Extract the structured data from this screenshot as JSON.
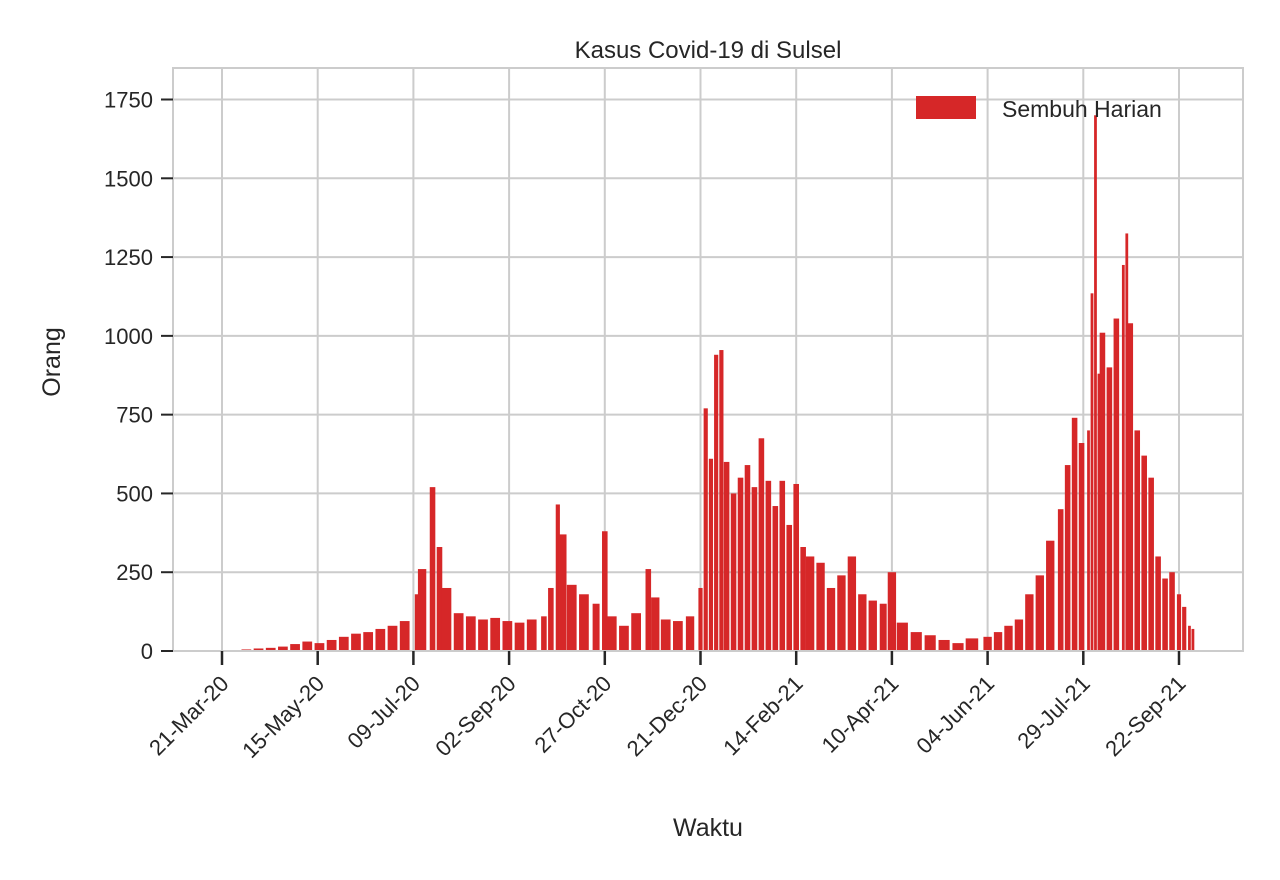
{
  "chart_data": {
    "type": "bar",
    "title": "Kasus Covid-19 di Sulsel",
    "xlabel": "Waktu",
    "ylabel": "Orang",
    "ylim": [
      0,
      1850
    ],
    "yticks": [
      0,
      250,
      500,
      750,
      1000,
      1250,
      1500,
      1750
    ],
    "xticks": [
      "21-Mar-20",
      "15-May-20",
      "09-Jul-20",
      "02-Sep-20",
      "27-Oct-20",
      "21-Dec-20",
      "14-Feb-21",
      "10-Apr-21",
      "04-Jun-21",
      "29-Jul-21",
      "22-Sep-21"
    ],
    "grid": true,
    "legend_position": "top-right",
    "color": "#d62728",
    "series": [
      {
        "name": "Sembuh Harian",
        "points": [
          [
            "2020-03-21",
            0
          ],
          [
            "2020-03-28",
            3
          ],
          [
            "2020-04-04",
            5
          ],
          [
            "2020-04-11",
            8
          ],
          [
            "2020-04-18",
            10
          ],
          [
            "2020-04-25",
            14
          ],
          [
            "2020-05-02",
            22
          ],
          [
            "2020-05-09",
            30
          ],
          [
            "2020-05-16",
            25
          ],
          [
            "2020-05-23",
            35
          ],
          [
            "2020-05-30",
            45
          ],
          [
            "2020-06-06",
            55
          ],
          [
            "2020-06-13",
            60
          ],
          [
            "2020-06-20",
            70
          ],
          [
            "2020-06-27",
            80
          ],
          [
            "2020-07-04",
            95
          ],
          [
            "2020-07-11",
            180
          ],
          [
            "2020-07-14",
            260
          ],
          [
            "2020-07-20",
            520
          ],
          [
            "2020-07-24",
            330
          ],
          [
            "2020-07-28",
            200
          ],
          [
            "2020-08-04",
            120
          ],
          [
            "2020-08-11",
            110
          ],
          [
            "2020-08-18",
            100
          ],
          [
            "2020-08-25",
            105
          ],
          [
            "2020-09-01",
            95
          ],
          [
            "2020-09-08",
            90
          ],
          [
            "2020-09-15",
            100
          ],
          [
            "2020-09-22",
            110
          ],
          [
            "2020-09-26",
            200
          ],
          [
            "2020-09-30",
            465
          ],
          [
            "2020-10-03",
            370
          ],
          [
            "2020-10-08",
            210
          ],
          [
            "2020-10-15",
            180
          ],
          [
            "2020-10-22",
            150
          ],
          [
            "2020-10-27",
            380
          ],
          [
            "2020-10-31",
            110
          ],
          [
            "2020-11-07",
            80
          ],
          [
            "2020-11-14",
            120
          ],
          [
            "2020-11-21",
            260
          ],
          [
            "2020-11-25",
            170
          ],
          [
            "2020-12-01",
            100
          ],
          [
            "2020-12-08",
            95
          ],
          [
            "2020-12-15",
            110
          ],
          [
            "2020-12-21",
            200
          ],
          [
            "2020-12-24",
            770
          ],
          [
            "2020-12-27",
            610
          ],
          [
            "2020-12-30",
            940
          ],
          [
            "2021-01-02",
            955
          ],
          [
            "2021-01-05",
            600
          ],
          [
            "2021-01-09",
            500
          ],
          [
            "2021-01-13",
            550
          ],
          [
            "2021-01-17",
            590
          ],
          [
            "2021-01-21",
            520
          ],
          [
            "2021-01-25",
            675
          ],
          [
            "2021-01-29",
            540
          ],
          [
            "2021-02-02",
            460
          ],
          [
            "2021-02-06",
            540
          ],
          [
            "2021-02-10",
            400
          ],
          [
            "2021-02-14",
            530
          ],
          [
            "2021-02-18",
            330
          ],
          [
            "2021-02-22",
            300
          ],
          [
            "2021-02-28",
            280
          ],
          [
            "2021-03-06",
            200
          ],
          [
            "2021-03-12",
            240
          ],
          [
            "2021-03-18",
            300
          ],
          [
            "2021-03-24",
            180
          ],
          [
            "2021-03-30",
            160
          ],
          [
            "2021-04-05",
            150
          ],
          [
            "2021-04-10",
            250
          ],
          [
            "2021-04-16",
            90
          ],
          [
            "2021-04-24",
            60
          ],
          [
            "2021-05-02",
            50
          ],
          [
            "2021-05-10",
            35
          ],
          [
            "2021-05-18",
            25
          ],
          [
            "2021-05-26",
            40
          ],
          [
            "2021-06-04",
            45
          ],
          [
            "2021-06-10",
            60
          ],
          [
            "2021-06-16",
            80
          ],
          [
            "2021-06-22",
            100
          ],
          [
            "2021-06-28",
            180
          ],
          [
            "2021-07-04",
            240
          ],
          [
            "2021-07-10",
            350
          ],
          [
            "2021-07-16",
            450
          ],
          [
            "2021-07-20",
            590
          ],
          [
            "2021-07-24",
            740
          ],
          [
            "2021-07-28",
            660
          ],
          [
            "2021-08-01",
            700
          ],
          [
            "2021-08-03",
            1135
          ],
          [
            "2021-08-05",
            1700
          ],
          [
            "2021-08-07",
            880
          ],
          [
            "2021-08-09",
            1010
          ],
          [
            "2021-08-13",
            900
          ],
          [
            "2021-08-17",
            1055
          ],
          [
            "2021-08-21",
            1225
          ],
          [
            "2021-08-23",
            1325
          ],
          [
            "2021-08-25",
            1040
          ],
          [
            "2021-08-29",
            700
          ],
          [
            "2021-09-02",
            620
          ],
          [
            "2021-09-06",
            550
          ],
          [
            "2021-09-10",
            300
          ],
          [
            "2021-09-14",
            230
          ],
          [
            "2021-09-18",
            250
          ],
          [
            "2021-09-22",
            180
          ],
          [
            "2021-09-25",
            140
          ],
          [
            "2021-09-28",
            80
          ],
          [
            "2021-09-30",
            70
          ]
        ]
      }
    ]
  }
}
